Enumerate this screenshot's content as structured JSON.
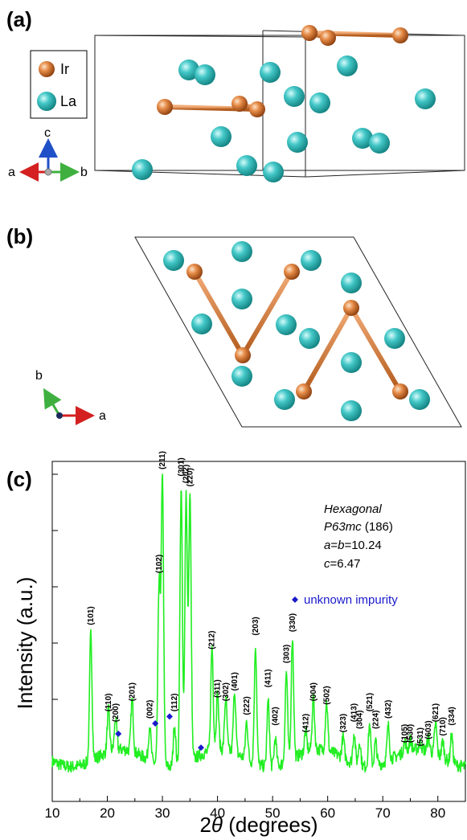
{
  "panel_a": {
    "label": "(a)",
    "legend": [
      {
        "name": "Ir",
        "color": "#d8742c"
      },
      {
        "name": "La",
        "color": "#3ec3c3"
      }
    ],
    "axes": {
      "c": "c",
      "a": "a",
      "b": "b"
    }
  },
  "panel_b": {
    "label": "(b)",
    "axes": {
      "b": "b",
      "a": "a"
    }
  },
  "panel_c": {
    "label": "(c)",
    "info": {
      "line1": "Hexagonal",
      "line2_italic": "P63mc",
      "line2_rest": " (186)",
      "line3_a": "a",
      "line3_eq": "=",
      "line3_b": "b",
      "line3_val": "=10.24",
      "line4_c": "c",
      "line4_val": "=6.47"
    },
    "impurity_label": "unknown impurity",
    "impurity_color": "#1a1acc"
  },
  "chart_data": {
    "type": "line",
    "xlabel_prefix": "2",
    "xlabel_theta": "θ",
    "xlabel_suffix": " (degrees)",
    "ylabel": "Intensity (a.u.)",
    "xlim": [
      10,
      85
    ],
    "xticks": [
      10,
      20,
      30,
      40,
      50,
      60,
      70,
      80
    ],
    "series_color": "#22ee22",
    "baseline": 0.18,
    "peaks": [
      {
        "x": 17.0,
        "y": 0.55,
        "label": "(101)"
      },
      {
        "x": 20.2,
        "y": 0.3,
        "label": "(110)"
      },
      {
        "x": 21.5,
        "y": 0.27,
        "label": "(200)"
      },
      {
        "x": 24.5,
        "y": 0.33,
        "label": "(201)"
      },
      {
        "x": 27.7,
        "y": 0.28,
        "label": "(002)"
      },
      {
        "x": 29.4,
        "y": 0.7,
        "label": "(102)"
      },
      {
        "x": 30.0,
        "y": 1.0,
        "label": "(211)"
      },
      {
        "x": 32.2,
        "y": 0.3,
        "label": "(112)"
      },
      {
        "x": 33.4,
        "y": 0.98,
        "label": "(301)"
      },
      {
        "x": 34.3,
        "y": 0.96,
        "label": "(202)"
      },
      {
        "x": 35.0,
        "y": 0.95,
        "label": "(220)"
      },
      {
        "x": 39.0,
        "y": 0.48,
        "label": "(212)"
      },
      {
        "x": 40.0,
        "y": 0.34,
        "label": "(311)"
      },
      {
        "x": 41.5,
        "y": 0.33,
        "label": "(302)"
      },
      {
        "x": 43.1,
        "y": 0.36,
        "label": "(401)"
      },
      {
        "x": 45.3,
        "y": 0.29,
        "label": "(222)"
      },
      {
        "x": 46.9,
        "y": 0.52,
        "label": "(203)"
      },
      {
        "x": 49.2,
        "y": 0.37,
        "label": "(411)"
      },
      {
        "x": 50.5,
        "y": 0.26,
        "label": "(402)"
      },
      {
        "x": 52.5,
        "y": 0.44,
        "label": "(303)"
      },
      {
        "x": 53.6,
        "y": 0.53,
        "label": "(330)"
      },
      {
        "x": 56.0,
        "y": 0.24,
        "label": "(412)"
      },
      {
        "x": 57.4,
        "y": 0.33,
        "label": "(004)"
      },
      {
        "x": 59.8,
        "y": 0.32,
        "label": "(502)"
      },
      {
        "x": 62.8,
        "y": 0.24,
        "label": "(323)"
      },
      {
        "x": 64.8,
        "y": 0.27,
        "label": "(413)"
      },
      {
        "x": 65.8,
        "y": 0.25,
        "label": "(304)"
      },
      {
        "x": 67.6,
        "y": 0.3,
        "label": "(521)"
      },
      {
        "x": 68.7,
        "y": 0.25,
        "label": "(224)"
      },
      {
        "x": 71.0,
        "y": 0.28,
        "label": "(432)"
      },
      {
        "x": 74.0,
        "y": 0.21,
        "label": "(105)"
      },
      {
        "x": 75.0,
        "y": 0.21,
        "label": "(530)"
      },
      {
        "x": 76.8,
        "y": 0.2,
        "label": "(531)"
      },
      {
        "x": 78.3,
        "y": 0.22,
        "label": "(603)"
      },
      {
        "x": 79.6,
        "y": 0.27,
        "label": "(621)"
      },
      {
        "x": 80.9,
        "y": 0.23,
        "label": "(710)"
      },
      {
        "x": 82.5,
        "y": 0.26,
        "label": "(334)"
      }
    ],
    "impurity_markers": [
      {
        "x": 22.0,
        "y": 0.25
      },
      {
        "x": 28.7,
        "y": 0.28
      },
      {
        "x": 31.3,
        "y": 0.3
      },
      {
        "x": 37.0,
        "y": 0.21
      }
    ]
  }
}
